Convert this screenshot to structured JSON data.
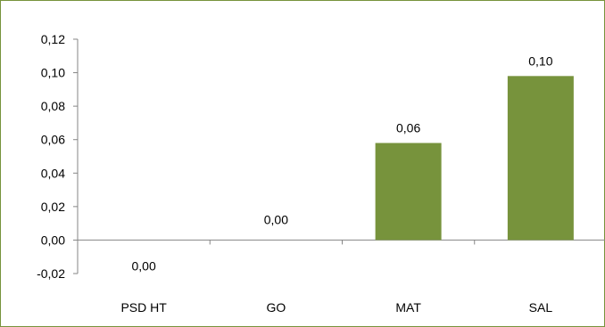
{
  "chart_data": {
    "type": "bar",
    "categories": [
      "PSD HT",
      "GO",
      "MAT",
      "SAL"
    ],
    "values": [
      0.0,
      0.0,
      0.058,
      0.098
    ],
    "data_labels": [
      "0,00",
      "0,00",
      "0,06",
      "0,10"
    ],
    "ylim": [
      -0.02,
      0.12
    ],
    "yticks": [
      -0.02,
      0.0,
      0.02,
      0.04,
      0.06,
      0.08,
      0.1,
      0.12
    ],
    "ytick_labels": [
      "-0,02",
      "0,00",
      "0,02",
      "0,04",
      "0,06",
      "0,08",
      "0,10",
      "0,12"
    ],
    "grid": false,
    "legend": "none",
    "title": "",
    "xlabel": "",
    "ylabel": ""
  },
  "colors": {
    "bar": "#77933c",
    "frame": "#77933c",
    "axis": "#868686"
  }
}
